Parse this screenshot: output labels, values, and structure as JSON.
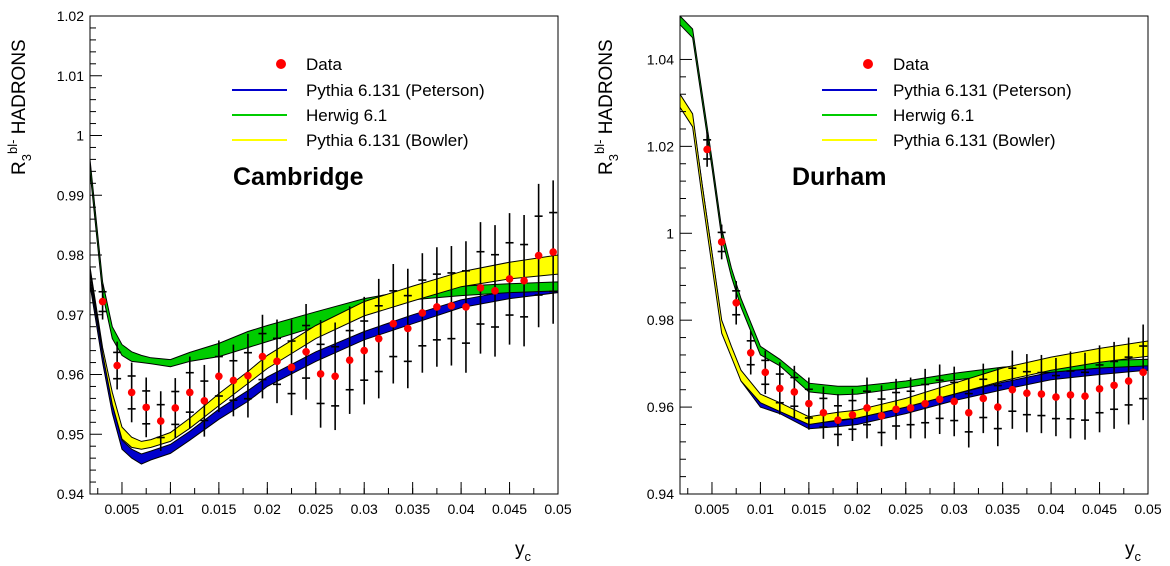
{
  "chart_data": [
    {
      "type": "line",
      "title": "Cambridge",
      "xlabel": "y_c",
      "ylabel": "R_3^bl- HADRONS",
      "xlim": [
        0.0017,
        0.05
      ],
      "ylim": [
        0.94,
        1.02
      ],
      "x_ticks": [
        "0.005",
        "0.01",
        "0.015",
        "0.02",
        "0.025",
        "0.03",
        "0.035",
        "0.04",
        "0.045",
        "0.05"
      ],
      "y_ticks": [
        "0.94",
        "0.95",
        "0.96",
        "0.97",
        "0.98",
        "0.99",
        "1",
        "1.01",
        "1.02"
      ],
      "legend_position": "top-right",
      "legend": [
        "Data",
        "Pythia 6.131 (Peterson)",
        "Herwig 6.1",
        "Pythia 6.131 (Bowler)"
      ],
      "colors": {
        "data": "#ff0000",
        "pythia_peterson": "#0000cc",
        "herwig": "#00cc00",
        "pythia_bowler": "#ffff00"
      },
      "data": {
        "x": [
          0.003,
          0.0045,
          0.006,
          0.0075,
          0.009,
          0.0105,
          0.012,
          0.0135,
          0.015,
          0.0165,
          0.018,
          0.0195,
          0.021,
          0.0225,
          0.024,
          0.0255,
          0.027,
          0.0285,
          0.03,
          0.0315,
          0.033,
          0.0345,
          0.036,
          0.0375,
          0.039,
          0.0405,
          0.042,
          0.0435,
          0.045,
          0.0465,
          0.048,
          0.0495
        ],
        "y": [
          0.9722,
          0.9615,
          0.957,
          0.9545,
          0.9522,
          0.9544,
          0.957,
          0.9556,
          0.9597,
          0.959,
          0.9598,
          0.963,
          0.9622,
          0.9612,
          0.9638,
          0.9601,
          0.9597,
          0.9624,
          0.964,
          0.966,
          0.9685,
          0.9677,
          0.9703,
          0.9713,
          0.9715,
          0.9713,
          0.9745,
          0.974,
          0.976,
          0.9757,
          0.9799,
          0.9805
        ],
        "y_err": [
          0.003,
          0.004,
          0.005,
          0.005,
          0.005,
          0.005,
          0.006,
          0.006,
          0.006,
          0.006,
          0.007,
          0.007,
          0.007,
          0.008,
          0.008,
          0.009,
          0.009,
          0.009,
          0.009,
          0.01,
          0.01,
          0.01,
          0.01,
          0.01,
          0.01,
          0.011,
          0.011,
          0.011,
          0.011,
          0.011,
          0.012,
          0.012
        ]
      },
      "series": [
        {
          "name": "Pythia 6.131 (Peterson)",
          "x": [
            0.0017,
            0.003,
            0.004,
            0.005,
            0.006,
            0.007,
            0.008,
            0.01,
            0.012,
            0.015,
            0.018,
            0.02,
            0.025,
            0.03,
            0.035,
            0.04,
            0.045,
            0.05
          ],
          "lower": [
            0.975,
            0.962,
            0.9535,
            0.9475,
            0.946,
            0.945,
            0.9457,
            0.9468,
            0.949,
            0.9525,
            0.9555,
            0.958,
            0.9622,
            0.9658,
            0.9685,
            0.9712,
            0.9727,
            0.9737
          ],
          "upper": [
            0.976,
            0.9635,
            0.955,
            0.949,
            0.9475,
            0.9467,
            0.9472,
            0.9483,
            0.9505,
            0.9542,
            0.9573,
            0.9596,
            0.9638,
            0.9672,
            0.97,
            0.9725,
            0.974,
            0.9752
          ]
        },
        {
          "name": "Herwig 6.1",
          "x": [
            0.0017,
            0.003,
            0.004,
            0.005,
            0.006,
            0.007,
            0.008,
            0.01,
            0.012,
            0.015,
            0.018,
            0.02,
            0.025,
            0.03,
            0.035,
            0.04,
            0.045,
            0.05
          ],
          "lower": [
            0.994,
            0.9735,
            0.966,
            0.9632,
            0.9622,
            0.962,
            0.9618,
            0.9613,
            0.9622,
            0.963,
            0.9645,
            0.9655,
            0.968,
            0.9708,
            0.9725,
            0.9732,
            0.9737,
            0.974
          ],
          "upper": [
            0.996,
            0.9755,
            0.968,
            0.965,
            0.9638,
            0.9632,
            0.9628,
            0.9625,
            0.9637,
            0.9652,
            0.9672,
            0.9682,
            0.9705,
            0.9727,
            0.9742,
            0.9748,
            0.9752,
            0.9755
          ]
        },
        {
          "name": "Pythia 6.131 (Bowler)",
          "x": [
            0.0017,
            0.003,
            0.004,
            0.005,
            0.006,
            0.007,
            0.008,
            0.01,
            0.012,
            0.015,
            0.018,
            0.02,
            0.025,
            0.03,
            0.035,
            0.04,
            0.045,
            0.05
          ],
          "lower": [
            0.977,
            0.9635,
            0.955,
            0.9492,
            0.9478,
            0.9475,
            0.9478,
            0.9488,
            0.951,
            0.9548,
            0.9585,
            0.961,
            0.966,
            0.9698,
            0.9723,
            0.9747,
            0.976,
            0.9768
          ],
          "upper": [
            0.978,
            0.9645,
            0.957,
            0.9512,
            0.9495,
            0.9488,
            0.9491,
            0.9503,
            0.9527,
            0.9568,
            0.9605,
            0.9632,
            0.9682,
            0.9722,
            0.9748,
            0.9772,
            0.9788,
            0.98
          ]
        }
      ]
    },
    {
      "type": "line",
      "title": "Durham",
      "xlabel": "y_c",
      "ylabel": "R_3^bl- HADRONS",
      "xlim": [
        0.0017,
        0.05
      ],
      "ylim": [
        0.94,
        1.05
      ],
      "x_ticks": [
        "0.005",
        "0.01",
        "0.015",
        "0.02",
        "0.025",
        "0.03",
        "0.035",
        "0.04",
        "0.045",
        "0.05"
      ],
      "y_ticks": [
        "0.94",
        "0.96",
        "0.98",
        "1",
        "1.02",
        "1.04"
      ],
      "legend_position": "top-right",
      "legend": [
        "Data",
        "Pythia 6.131 (Peterson)",
        "Herwig 6.1",
        "Pythia 6.131 (Bowler)"
      ],
      "colors": {
        "data": "#ff0000",
        "pythia_peterson": "#0000cc",
        "herwig": "#00cc00",
        "pythia_bowler": "#ffff00"
      },
      "data": {
        "x": [
          0.0045,
          0.006,
          0.0075,
          0.009,
          0.0105,
          0.012,
          0.0135,
          0.015,
          0.0165,
          0.018,
          0.0195,
          0.021,
          0.0225,
          0.024,
          0.0255,
          0.027,
          0.0285,
          0.03,
          0.0315,
          0.033,
          0.0345,
          0.036,
          0.0375,
          0.039,
          0.0405,
          0.042,
          0.0435,
          0.045,
          0.0465,
          0.048,
          0.0495
        ],
        "y": [
          1.0193,
          0.998,
          0.984,
          0.9725,
          0.968,
          0.9643,
          0.9635,
          0.9608,
          0.9587,
          0.957,
          0.9582,
          0.9598,
          0.958,
          0.9595,
          0.9598,
          0.9608,
          0.9618,
          0.9613,
          0.9587,
          0.962,
          0.96,
          0.964,
          0.9632,
          0.963,
          0.9623,
          0.9628,
          0.9625,
          0.9642,
          0.965,
          0.966,
          0.968
        ],
        "y_err": [
          0.004,
          0.004,
          0.005,
          0.005,
          0.005,
          0.006,
          0.006,
          0.006,
          0.006,
          0.006,
          0.006,
          0.007,
          0.007,
          0.007,
          0.007,
          0.008,
          0.008,
          0.008,
          0.008,
          0.008,
          0.009,
          0.009,
          0.009,
          0.009,
          0.009,
          0.01,
          0.01,
          0.01,
          0.01,
          0.01,
          0.011
        ]
      },
      "series": [
        {
          "name": "Pythia 6.131 (Peterson)",
          "x": [
            0.0017,
            0.003,
            0.004,
            0.005,
            0.006,
            0.007,
            0.008,
            0.01,
            0.012,
            0.015,
            0.018,
            0.02,
            0.025,
            0.03,
            0.035,
            0.04,
            0.045,
            0.05
          ],
          "lower": [
            1.029,
            1.025,
            1.009,
            0.994,
            0.978,
            0.972,
            0.966,
            0.96,
            0.9585,
            0.955,
            0.9555,
            0.956,
            0.9585,
            0.9615,
            0.964,
            0.9663,
            0.9675,
            0.9685
          ],
          "upper": [
            1.031,
            1.027,
            1.011,
            0.9955,
            0.9795,
            0.9735,
            0.968,
            0.9618,
            0.96,
            0.9563,
            0.9568,
            0.9575,
            0.96,
            0.963,
            0.9657,
            0.968,
            0.969,
            0.97
          ]
        },
        {
          "name": "Herwig 6.1",
          "x": [
            0.0017,
            0.003,
            0.004,
            0.005,
            0.006,
            0.007,
            0.008,
            0.01,
            0.012,
            0.015,
            0.018,
            0.02,
            0.025,
            0.03,
            0.035,
            0.04,
            0.045,
            0.05
          ],
          "lower": [
            1.048,
            1.045,
            1.03,
            1.015,
            0.999,
            0.99,
            0.983,
            0.972,
            0.9695,
            0.9635,
            0.9628,
            0.963,
            0.9645,
            0.9662,
            0.9675,
            0.968,
            0.969,
            0.9695
          ],
          "upper": [
            1.05,
            1.047,
            1.032,
            1.017,
            1.001,
            0.992,
            0.985,
            0.974,
            0.971,
            0.9655,
            0.9648,
            0.9648,
            0.966,
            0.9678,
            0.9692,
            0.97,
            0.9707,
            0.971
          ]
        },
        {
          "name": "Pythia 6.131 (Bowler)",
          "x": [
            0.0017,
            0.003,
            0.004,
            0.005,
            0.006,
            0.007,
            0.008,
            0.01,
            0.012,
            0.015,
            0.018,
            0.02,
            0.025,
            0.03,
            0.035,
            0.04,
            0.045,
            0.05
          ],
          "lower": [
            1.029,
            1.0245,
            1.008,
            0.9925,
            0.977,
            0.9715,
            0.966,
            0.961,
            0.959,
            0.956,
            0.957,
            0.9575,
            0.96,
            0.963,
            0.966,
            0.9685,
            0.9703,
            0.9717
          ],
          "upper": [
            1.032,
            1.0275,
            1.011,
            0.9955,
            0.98,
            0.974,
            0.9685,
            0.963,
            0.961,
            0.9578,
            0.9588,
            0.9593,
            0.962,
            0.9655,
            0.969,
            0.9715,
            0.9735,
            0.9752
          ]
        }
      ]
    }
  ]
}
